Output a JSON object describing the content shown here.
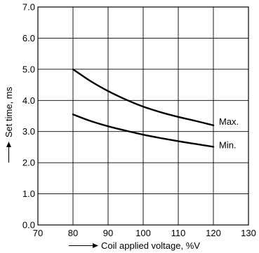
{
  "chart_data": {
    "type": "line",
    "xlabel": "Coil applied voltage, %V",
    "ylabel": "Set time, ms",
    "xlim": [
      70,
      130
    ],
    "ylim": [
      0.0,
      7.0
    ],
    "x_ticks": [
      70,
      80,
      90,
      100,
      110,
      120,
      130
    ],
    "x_tick_labels": [
      "70",
      "80",
      "90",
      "100",
      "110",
      "120",
      "130"
    ],
    "y_ticks": [
      0.0,
      1.0,
      2.0,
      3.0,
      4.0,
      5.0,
      6.0,
      7.0
    ],
    "y_tick_labels": [
      "0.0",
      "1.0",
      "2.0",
      "3.0",
      "4.0",
      "5.0",
      "6.0",
      "7.0"
    ],
    "grid": true,
    "series": [
      {
        "name": "Max.",
        "x": [
          80,
          85,
          90,
          95,
          100,
          105,
          110,
          115,
          120
        ],
        "y": [
          5.0,
          4.62,
          4.3,
          4.03,
          3.8,
          3.62,
          3.47,
          3.34,
          3.2
        ]
      },
      {
        "name": "Min.",
        "x": [
          80,
          85,
          90,
          95,
          100,
          105,
          110,
          115,
          120
        ],
        "y": [
          3.55,
          3.34,
          3.17,
          3.03,
          2.9,
          2.79,
          2.69,
          2.6,
          2.51
        ]
      }
    ]
  }
}
